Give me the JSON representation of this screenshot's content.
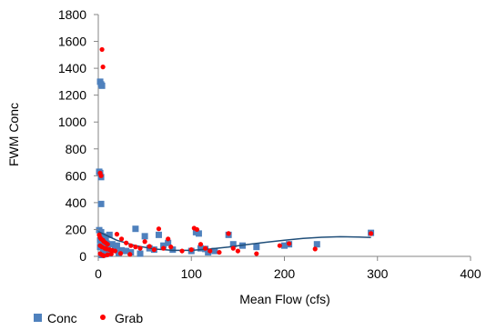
{
  "chart_data": {
    "type": "scatter",
    "xlabel": "Mean Flow (cfs)",
    "ylabel": "FWM Conc",
    "xlim": [
      0,
      400
    ],
    "ylim": [
      0,
      1800
    ],
    "x_ticks": [
      "0",
      "100",
      "200",
      "300",
      "400"
    ],
    "y_ticks": [
      "0",
      "200",
      "400",
      "600",
      "800",
      "1000",
      "1200",
      "1400",
      "1600",
      "1800"
    ],
    "grid": false,
    "legend_position": "bottom-left",
    "series": [
      {
        "name": "Conc",
        "marker": "square",
        "color": "#4F81BD",
        "points": [
          [
            2,
            1300
          ],
          [
            3,
            1280
          ],
          [
            4,
            1270
          ],
          [
            1,
            630
          ],
          [
            2,
            620
          ],
          [
            3,
            590
          ],
          [
            3,
            390
          ],
          [
            1,
            195
          ],
          [
            3,
            180
          ],
          [
            5,
            150
          ],
          [
            8,
            140
          ],
          [
            12,
            160
          ],
          [
            2,
            120
          ],
          [
            4,
            110
          ],
          [
            6,
            100
          ],
          [
            9,
            95
          ],
          [
            15,
            90
          ],
          [
            20,
            80
          ],
          [
            2,
            70
          ],
          [
            5,
            60
          ],
          [
            10,
            55
          ],
          [
            18,
            50
          ],
          [
            25,
            45
          ],
          [
            30,
            40
          ],
          [
            40,
            205
          ],
          [
            50,
            150
          ],
          [
            55,
            60
          ],
          [
            60,
            50
          ],
          [
            65,
            160
          ],
          [
            70,
            80
          ],
          [
            75,
            100
          ],
          [
            80,
            50
          ],
          [
            100,
            40
          ],
          [
            105,
            180
          ],
          [
            108,
            170
          ],
          [
            110,
            60
          ],
          [
            115,
            55
          ],
          [
            118,
            30
          ],
          [
            125,
            40
          ],
          [
            140,
            160
          ],
          [
            145,
            90
          ],
          [
            155,
            80
          ],
          [
            170,
            70
          ],
          [
            200,
            80
          ],
          [
            205,
            90
          ],
          [
            235,
            90
          ],
          [
            293,
            175
          ],
          [
            3,
            10
          ],
          [
            6,
            15
          ],
          [
            12,
            20
          ],
          [
            22,
            25
          ],
          [
            35,
            30
          ],
          [
            45,
            20
          ]
        ]
      },
      {
        "name": "Grab",
        "marker": "circle",
        "color": "#FF0000",
        "points": [
          [
            4,
            1540
          ],
          [
            5,
            1410
          ],
          [
            2,
            620
          ],
          [
            3,
            600
          ],
          [
            1,
            160
          ],
          [
            2,
            140
          ],
          [
            3,
            130
          ],
          [
            5,
            120
          ],
          [
            6,
            110
          ],
          [
            8,
            100
          ],
          [
            10,
            90
          ],
          [
            2,
            80
          ],
          [
            4,
            70
          ],
          [
            7,
            60
          ],
          [
            9,
            55
          ],
          [
            12,
            50
          ],
          [
            15,
            45
          ],
          [
            18,
            40
          ],
          [
            20,
            165
          ],
          [
            25,
            130
          ],
          [
            30,
            100
          ],
          [
            35,
            80
          ],
          [
            40,
            70
          ],
          [
            45,
            60
          ],
          [
            50,
            110
          ],
          [
            55,
            75
          ],
          [
            60,
            50
          ],
          [
            65,
            205
          ],
          [
            70,
            60
          ],
          [
            75,
            130
          ],
          [
            78,
            70
          ],
          [
            90,
            40
          ],
          [
            100,
            50
          ],
          [
            103,
            210
          ],
          [
            106,
            200
          ],
          [
            110,
            90
          ],
          [
            115,
            60
          ],
          [
            120,
            40
          ],
          [
            130,
            30
          ],
          [
            140,
            170
          ],
          [
            145,
            60
          ],
          [
            150,
            40
          ],
          [
            170,
            20
          ],
          [
            195,
            80
          ],
          [
            205,
            95
          ],
          [
            233,
            55
          ],
          [
            293,
            170
          ],
          [
            2,
            20
          ],
          [
            4,
            10
          ],
          [
            6,
            5
          ],
          [
            10,
            12
          ],
          [
            14,
            18
          ],
          [
            24,
            22
          ],
          [
            34,
            15
          ]
        ]
      }
    ],
    "trendline": {
      "series": "Conc",
      "type": "polynomial",
      "color": "#1F4E79",
      "points": [
        [
          0,
          185
        ],
        [
          20,
          120
        ],
        [
          40,
          80
        ],
        [
          60,
          55
        ],
        [
          80,
          45
        ],
        [
          100,
          45
        ],
        [
          120,
          55
        ],
        [
          140,
          70
        ],
        [
          160,
          88
        ],
        [
          180,
          105
        ],
        [
          200,
          120
        ],
        [
          220,
          133
        ],
        [
          240,
          142
        ],
        [
          260,
          146
        ],
        [
          280,
          144
        ],
        [
          293,
          140
        ]
      ]
    }
  }
}
